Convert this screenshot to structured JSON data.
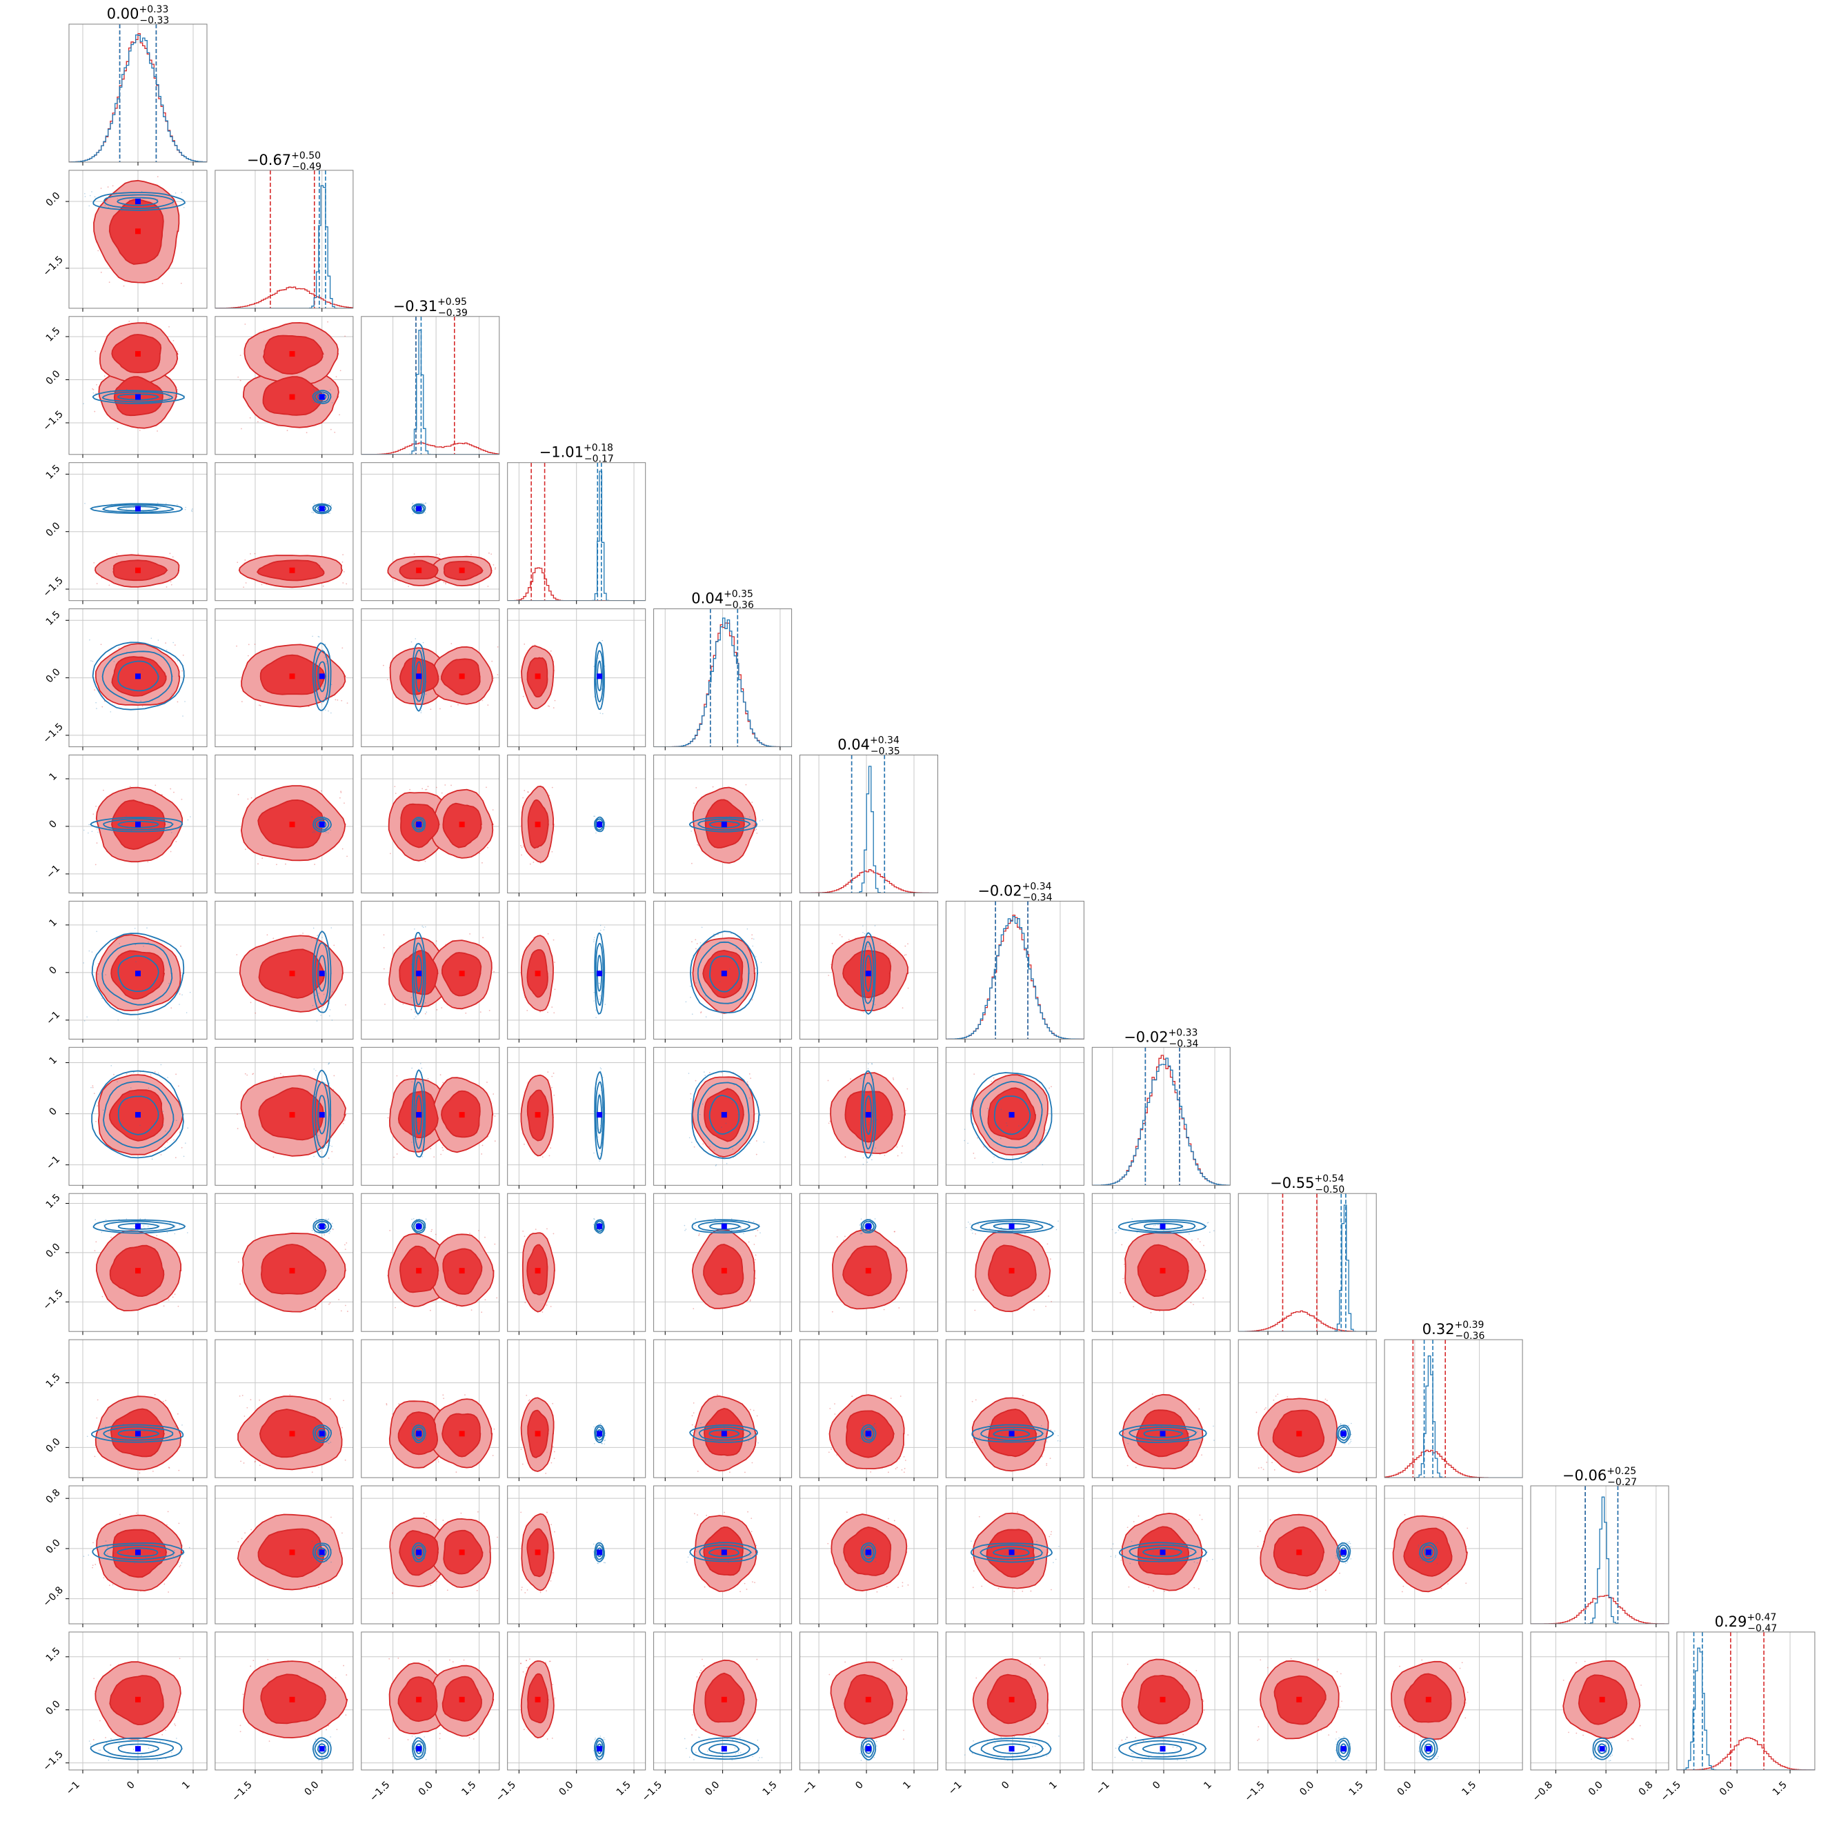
{
  "colors": {
    "red": "#d62728",
    "red_fill": "#f1a3a4",
    "red_core": "#e8393b",
    "blue": "#1f77b4",
    "marker": "#0000ff",
    "marker_red": "#ff0000",
    "grid": "#c8c8c8",
    "frame": "#7f7f7f"
  },
  "chart_data": {
    "type": "corner",
    "n_params": 12,
    "grid": true,
    "titles": [
      {
        "median": "0.00",
        "plus": "+0.33",
        "minus": "−0.33"
      },
      {
        "median": "−0.67",
        "plus": "+0.50",
        "minus": "−0.49"
      },
      {
        "median": "−0.31",
        "plus": "+0.95",
        "minus": "−0.39"
      },
      {
        "median": "−1.01",
        "plus": "+0.18",
        "minus": "−0.17"
      },
      {
        "median": "0.04",
        "plus": "+0.35",
        "minus": "−0.36"
      },
      {
        "median": "0.04",
        "plus": "+0.34",
        "minus": "−0.35"
      },
      {
        "median": "−0.02",
        "plus": "+0.34",
        "minus": "−0.34"
      },
      {
        "median": "−0.02",
        "plus": "+0.33",
        "minus": "−0.34"
      },
      {
        "median": "−0.55",
        "plus": "+0.54",
        "minus": "−0.50"
      },
      {
        "median": "0.32",
        "plus": "+0.39",
        "minus": "−0.36"
      },
      {
        "median": "−0.06",
        "plus": "+0.25",
        "minus": "−0.27"
      },
      {
        "median": "0.29",
        "plus": "+0.47",
        "minus": "−0.47"
      }
    ],
    "ranges": [
      [
        -1.25,
        1.25
      ],
      [
        -2.4,
        0.7
      ],
      [
        -2.6,
        2.2
      ],
      [
        -1.8,
        1.8
      ],
      [
        -1.8,
        1.8
      ],
      [
        -1.4,
        1.5
      ],
      [
        -1.4,
        1.5
      ],
      [
        -1.4,
        1.3
      ],
      [
        -2.4,
        1.8
      ],
      [
        -0.7,
        2.5
      ],
      [
        -1.2,
        1.0
      ],
      [
        -1.7,
        2.2
      ]
    ],
    "ticks": [
      [
        -1,
        0,
        1
      ],
      [
        -1.5,
        0.0
      ],
      [
        -1.5,
        0.0,
        1.5
      ],
      [
        -1.5,
        0.0,
        1.5
      ],
      [
        -1.5,
        0.0,
        1.5
      ],
      [
        -1,
        0,
        1
      ],
      [
        -1,
        0,
        1
      ],
      [
        -1,
        0,
        1
      ],
      [
        -1.5,
        0.0,
        1.5
      ],
      [
        0.0,
        1.5
      ],
      [
        -0.8,
        0.0,
        0.8
      ],
      [
        -1.5,
        0.0,
        1.5
      ]
    ],
    "tick_labels": [
      [
        "−1",
        "0",
        "1"
      ],
      [
        "−1.5",
        "0.0"
      ],
      [
        "−1.5",
        "0.0",
        "1.5"
      ],
      [
        "−1.5",
        "0.0",
        "1.5"
      ],
      [
        "−1.5",
        "0.0",
        "1.5"
      ],
      [
        "−1",
        "0",
        "1"
      ],
      [
        "−1",
        "0",
        "1"
      ],
      [
        "−1",
        "0",
        "1"
      ],
      [
        "−1.5",
        "0.0",
        "1.5"
      ],
      [
        "0.0",
        "1.5"
      ],
      [
        "−0.8",
        "0.0",
        "0.8"
      ],
      [
        "−1.5",
        "0.0",
        "1.5"
      ]
    ],
    "series": [
      {
        "color": "red",
        "means": [
          0.0,
          -0.67,
          [
            -0.6,
            0.9
          ],
          -1.01,
          0.04,
          0.04,
          -0.02,
          -0.02,
          -0.55,
          0.32,
          -0.06,
          0.29
        ],
        "sigmas": [
          0.33,
          0.5,
          0.5,
          0.18,
          0.35,
          0.34,
          0.34,
          0.34,
          0.52,
          0.37,
          0.26,
          0.47
        ],
        "median_lines": [
          [
            -0.33,
            0.33
          ],
          [
            -1.16,
            -0.17
          ],
          [
            -0.7,
            0.64
          ],
          [
            -1.18,
            -0.83
          ],
          [
            -0.32,
            0.39
          ],
          [
            -0.31,
            0.38
          ],
          [
            -0.36,
            0.32
          ],
          [
            -0.36,
            0.31
          ],
          [
            -1.05,
            -0.01
          ],
          [
            -0.04,
            0.71
          ],
          [
            -0.33,
            0.19
          ],
          [
            -0.18,
            0.76
          ]
        ]
      },
      {
        "color": "blue",
        "means": [
          0.0,
          0.0,
          -0.6,
          0.6,
          0.04,
          0.04,
          -0.02,
          -0.02,
          0.8,
          0.32,
          -0.06,
          -1.1
        ],
        "sigmas": [
          0.33,
          0.08,
          0.09,
          0.05,
          0.35,
          0.06,
          0.34,
          0.34,
          0.08,
          0.08,
          0.06,
          0.12
        ],
        "median_lines": [
          [
            -0.33,
            0.33
          ],
          [
            -0.06,
            0.08
          ],
          [
            -0.7,
            -0.52
          ],
          [
            0.55,
            0.65
          ],
          [
            -0.32,
            0.39
          ],
          [
            -0.31,
            0.38
          ],
          [
            -0.36,
            0.32
          ],
          [
            -0.36,
            0.31
          ],
          [
            0.73,
            0.87
          ],
          [
            0.22,
            0.42
          ],
          [
            -0.33,
            0.19
          ],
          [
            -1.22,
            -0.98
          ]
        ]
      }
    ],
    "truths_blue": [
      0.0,
      0.0,
      -0.6,
      0.6,
      0.04,
      0.04,
      -0.02,
      -0.02,
      0.8,
      0.32,
      -0.06,
      -1.1
    ]
  }
}
